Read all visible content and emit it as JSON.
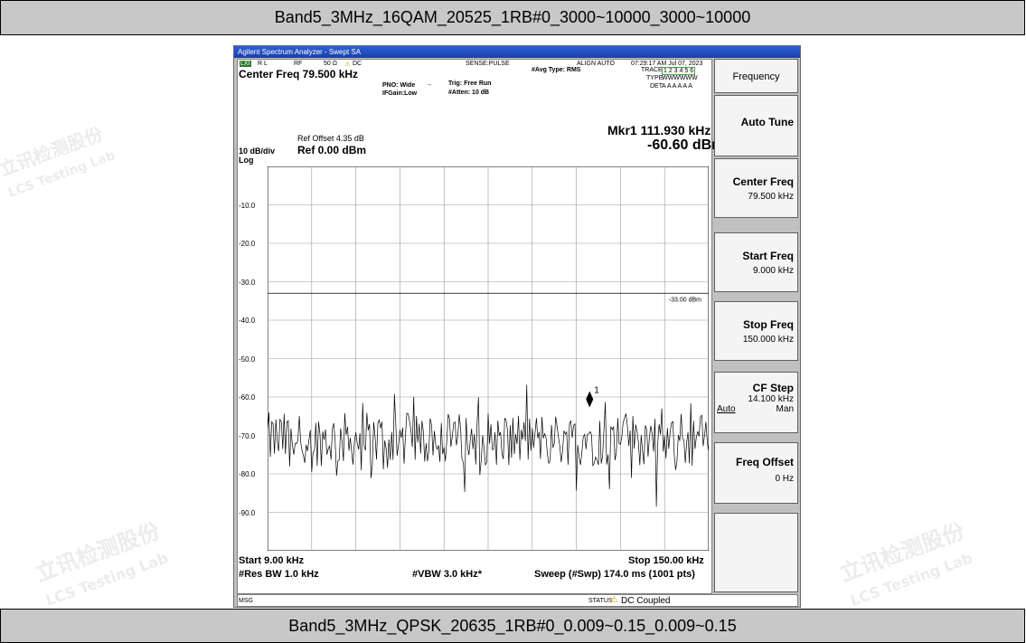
{
  "top_caption": "Band5_3MHz_16QAM_20525_1RB#0_3000~10000_3000~10000",
  "bottom_caption": "Band5_3MHz_QPSK_20635_1RB#0_0.009~0.15_0.009~0.15",
  "watermark": {
    "cn": "立讯检测股份",
    "en": "LCS Testing Lab"
  },
  "analyzer": {
    "window_title": "Agilent Spectrum Analyzer - Swept SA",
    "status_row": {
      "lx": "LXI",
      "rl": "R L",
      "rf": "RF",
      "imp": "50 Ω",
      "dc": "DC",
      "sense": "SENSE:PULSE",
      "align": "ALIGN AUTO",
      "timestamp": "07:29:17 AM Jul 07, 2023"
    },
    "center_freq": "Center Freq 79.500 kHz",
    "pno": "PNO: Wide",
    "ifgain": "IFGain:Low",
    "trig": "Trig: Free Run",
    "atten": "#Atten: 10 dB",
    "avg_type": "#Avg Type: RMS",
    "trace_label": "TRACE",
    "trace_nums": "1 2 3 4 5 6",
    "type_label": "TYPE",
    "type_val": "WWWWWW",
    "det_label": "DET",
    "det_val": "A A A A A A",
    "ref_offset": "Ref Offset 4.35 dB",
    "scale": "10 dB/div",
    "ref": "Ref 0.00 dBm",
    "log": "Log",
    "marker_freq": "Mkr1 111.930 kHz",
    "marker_amp": "-60.60 dBm",
    "marker_label": "1",
    "limit_label": "-33.00 dBm",
    "start": "Start 9.00 kHz",
    "stop": "Stop 150.00 kHz",
    "res_bw": "#Res BW 1.0 kHz",
    "vbw": "#VBW 3.0 kHz*",
    "sweep": "Sweep (#Swp)  174.0 ms (1001 pts)",
    "msg": "MSG",
    "status": "STATUS",
    "status_msg": "DC Coupled"
  },
  "softkeys": {
    "header": "Frequency",
    "auto_tune": "Auto Tune",
    "center_freq": {
      "label": "Center Freq",
      "value": "79.500 kHz"
    },
    "start_freq": {
      "label": "Start Freq",
      "value": "9.000 kHz"
    },
    "stop_freq": {
      "label": "Stop Freq",
      "value": "150.000 kHz"
    },
    "cf_step": {
      "label": "CF Step",
      "value": "14.100 kHz",
      "auto": "Auto",
      "man": "Man"
    },
    "freq_offset": {
      "label": "Freq Offset",
      "value": "0 Hz"
    }
  },
  "chart_data": {
    "type": "line",
    "ylim": [
      -100,
      0
    ],
    "xlim": [
      9,
      150
    ],
    "y_ticks": [
      "-10.0",
      "-20.0",
      "-30.0",
      "-40.0",
      "-50.0",
      "-60.0",
      "-70.0",
      "-80.0",
      "-90.0"
    ],
    "limit_line_dbm": -33.0,
    "marker": {
      "x_khz": 111.93,
      "y_dbm": -60.6
    },
    "trace_color": "#000000"
  }
}
